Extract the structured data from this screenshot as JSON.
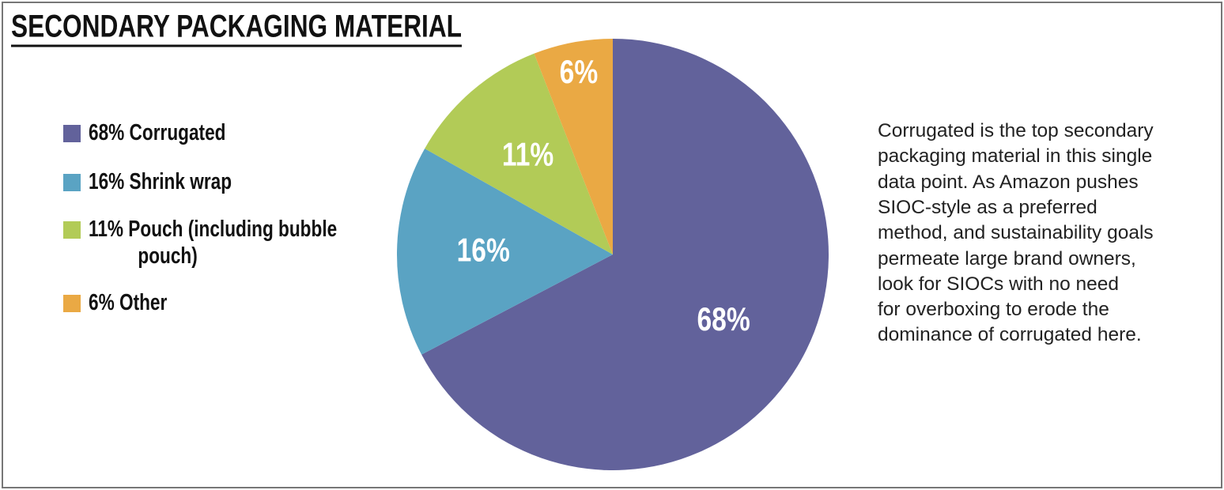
{
  "chart_data": {
    "type": "pie",
    "title": "SECONDARY PACKAGING MATERIAL",
    "categories": [
      "68% Corrugated",
      "16% Shrink wrap",
      "11% Pouch (including bubble pouch)",
      "6% Other"
    ],
    "values": [
      68,
      16,
      11,
      6
    ],
    "value_labels": [
      "68%",
      "16%",
      "11%",
      "6%"
    ],
    "colors": [
      "#62629b",
      "#5aa3c3",
      "#b2cb57",
      "#eaa944"
    ],
    "annotation": [
      "Corrugated is the top secondary",
      "packaging material in this single",
      "data point. As Amazon pushes",
      "SIOC-style as a preferred",
      "method, and sustainability goals",
      "permeate large brand owners,",
      "look for SIOCs with no need",
      "for overboxing to erode the",
      "dominance of corrugated here."
    ]
  }
}
